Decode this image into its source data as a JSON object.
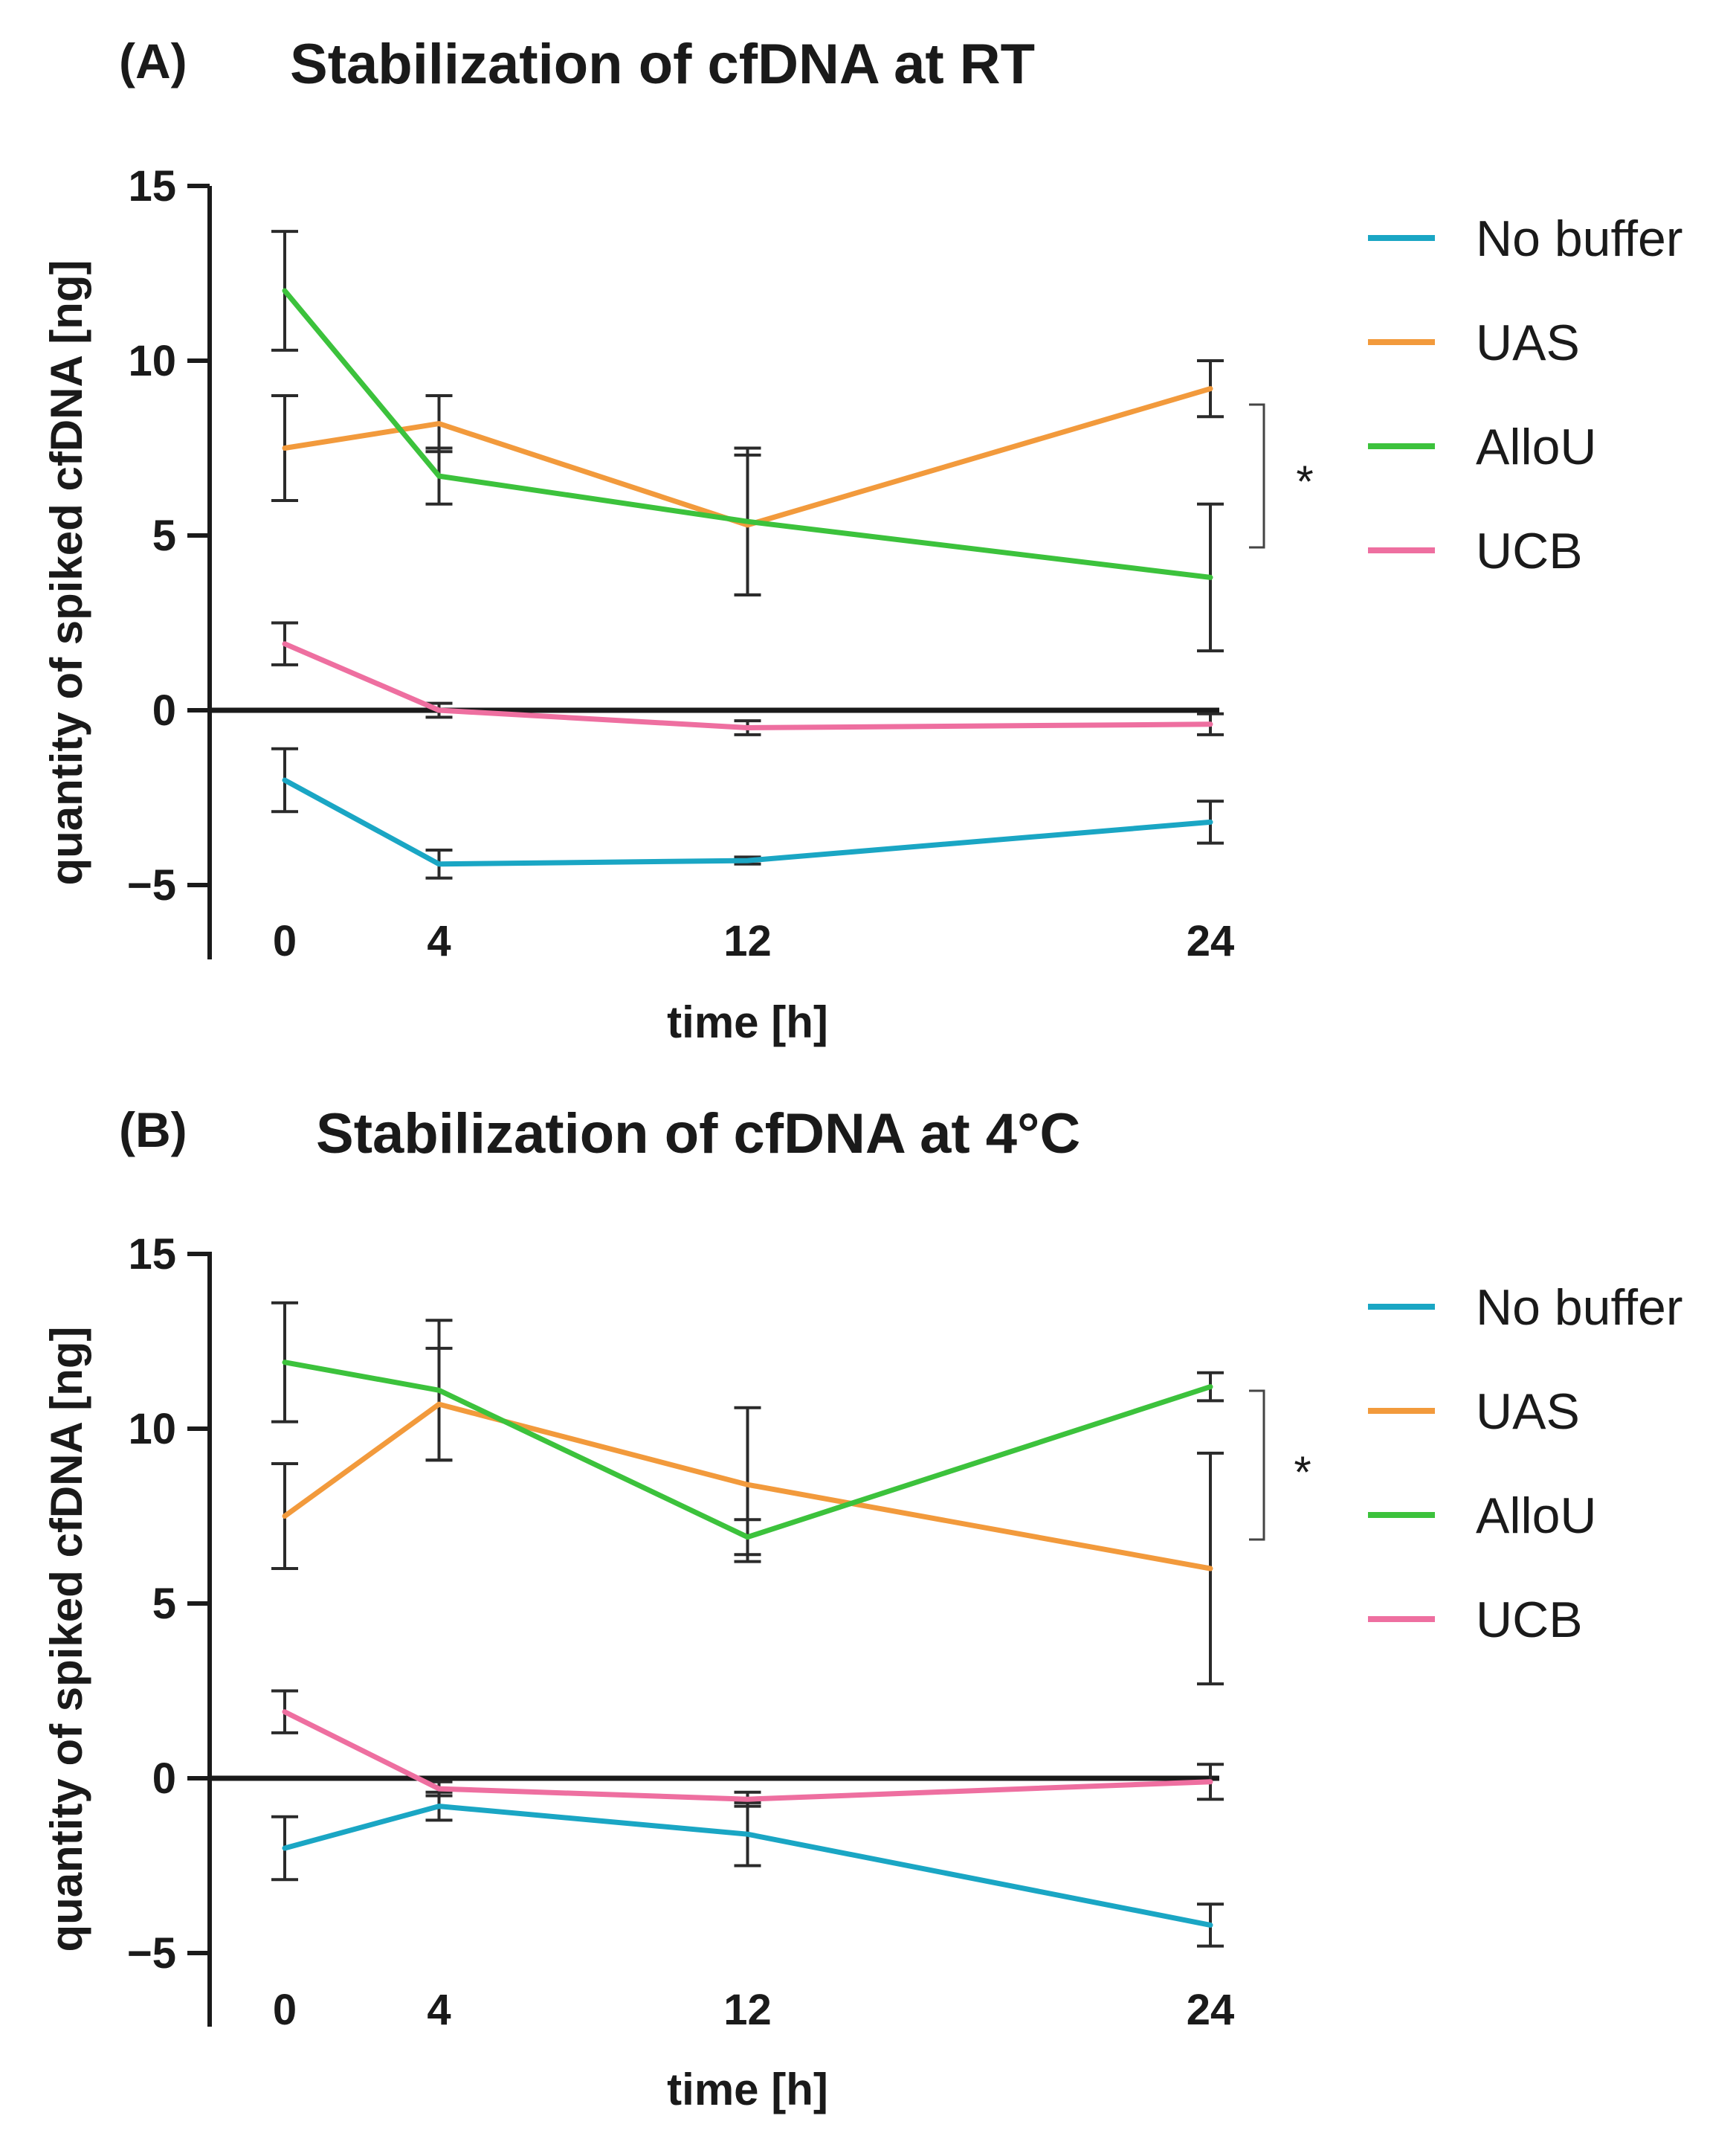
{
  "chart_data": [
    {
      "type": "line",
      "panel_label": "(A)",
      "title": "Stabilization of cfDNA at RT",
      "xlabel": "time [h]",
      "ylabel": "quantity of spiked cfDNA [ng]",
      "x": [
        0,
        4,
        12,
        24
      ],
      "x_tick_labels": [
        "0",
        "4",
        "12",
        "24"
      ],
      "y_ticks": [
        -5,
        0,
        5,
        10,
        15
      ],
      "y_tick_labels": [
        "−5",
        "0",
        "5",
        "10",
        "15"
      ],
      "ylim": [
        -7,
        15
      ],
      "legend_position": "right",
      "significance": {
        "label": "*",
        "series": [
          "UAS",
          "AlloU"
        ],
        "at_x": 24
      },
      "series": [
        {
          "name": "No buffer",
          "color": "#1aa6c4",
          "values": [
            -2.0,
            -4.4,
            -4.3,
            -3.2
          ],
          "err": [
            0.9,
            0.4,
            0.1,
            0.6
          ]
        },
        {
          "name": "UAS",
          "color": "#f29a3c",
          "values": [
            7.5,
            8.2,
            5.3,
            9.2
          ],
          "err": [
            1.5,
            0.8,
            2.0,
            0.8
          ]
        },
        {
          "name": "AlloU",
          "color": "#3cc23c",
          "values": [
            12.0,
            6.7,
            5.4,
            3.8
          ],
          "err": [
            1.7,
            0.8,
            2.1,
            2.1
          ]
        },
        {
          "name": "UCB",
          "color": "#ee6fa0",
          "values": [
            1.9,
            0.0,
            -0.5,
            -0.4
          ],
          "err": [
            0.6,
            0.2,
            0.2,
            0.3
          ]
        }
      ]
    },
    {
      "type": "line",
      "panel_label": "(B)",
      "title": "Stabilization of cfDNA at 4°C",
      "xlabel": "time [h]",
      "ylabel": "quantity of spiked cfDNA [ng]",
      "x": [
        0,
        4,
        12,
        24
      ],
      "x_tick_labels": [
        "0",
        "4",
        "12",
        "24"
      ],
      "y_ticks": [
        -5,
        0,
        5,
        10,
        15
      ],
      "y_tick_labels": [
        "−5",
        "0",
        "5",
        "10",
        "15"
      ],
      "ylim": [
        -7,
        15
      ],
      "legend_position": "right",
      "significance": {
        "label": "*",
        "series": [
          "AlloU",
          "UAS"
        ],
        "at_x": 24
      },
      "series": [
        {
          "name": "No buffer",
          "color": "#1aa6c4",
          "values": [
            -2.0,
            -0.8,
            -1.6,
            -4.2
          ],
          "err": [
            0.9,
            0.4,
            0.9,
            0.6
          ]
        },
        {
          "name": "UAS",
          "color": "#f29a3c",
          "values": [
            7.5,
            10.7,
            8.4,
            6.0
          ],
          "err": [
            1.5,
            1.6,
            2.2,
            3.3
          ]
        },
        {
          "name": "AlloU",
          "color": "#3cc23c",
          "values": [
            11.9,
            11.1,
            6.9,
            11.2
          ],
          "err": [
            1.7,
            2.0,
            0.5,
            0.4
          ]
        },
        {
          "name": "UCB",
          "color": "#ee6fa0",
          "values": [
            1.9,
            -0.3,
            -0.6,
            -0.1
          ],
          "err": [
            0.6,
            0.2,
            0.2,
            0.5
          ]
        }
      ]
    }
  ]
}
